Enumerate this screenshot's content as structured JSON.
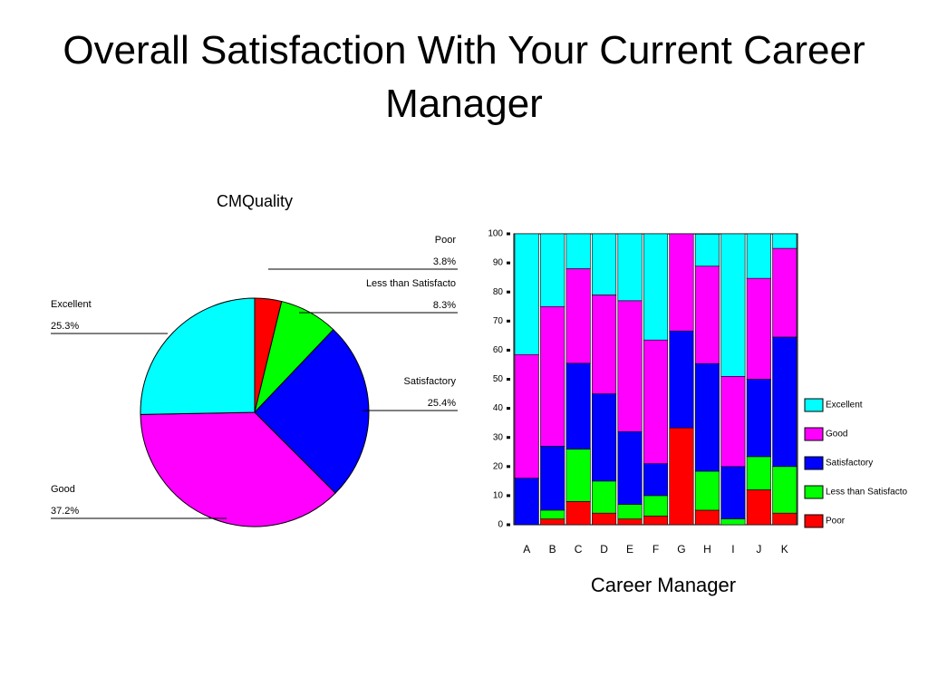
{
  "title": "Overall Satisfaction With Your Current Career Manager",
  "chart_data": [
    {
      "type": "pie",
      "title": "CMQuality",
      "categories": [
        "Poor",
        "Less than Satisfacto",
        "Satisfactory",
        "Good",
        "Excellent"
      ],
      "values": [
        3.8,
        8.3,
        25.4,
        37.2,
        25.3
      ],
      "value_labels": [
        "3.8%",
        "8.3%",
        "25.4%",
        "37.2%",
        "25.3%"
      ],
      "colors": [
        "#ff0000",
        "#00ff00",
        "#0000ff",
        "#ff00ff",
        "#00ffff"
      ]
    },
    {
      "type": "stacked_bar",
      "x_label": "Career Manager",
      "categories": [
        "A",
        "B",
        "C",
        "D",
        "E",
        "F",
        "G",
        "H",
        "I",
        "J",
        "K"
      ],
      "series": [
        {
          "name": "Poor",
          "color": "#ff0000",
          "values": [
            0,
            2,
            8,
            4,
            2,
            3,
            33.3,
            5,
            0,
            12,
            4
          ]
        },
        {
          "name": "Less than Satisfacto",
          "color": "#00ff00",
          "values": [
            0,
            3,
            18,
            11,
            5,
            7,
            0,
            13.4,
            2,
            11.4,
            16
          ]
        },
        {
          "name": "Satisfactory",
          "color": "#0000ff",
          "values": [
            16,
            22,
            29.5,
            30,
            25,
            11,
            33.3,
            37,
            18,
            26.6,
            44.5
          ]
        },
        {
          "name": "Good",
          "color": "#ff00ff",
          "values": [
            42.5,
            48,
            32.5,
            34,
            45,
            42.5,
            33.4,
            33.5,
            31,
            34.7,
            30.5
          ]
        },
        {
          "name": "Excellent",
          "color": "#00ffff",
          "values": [
            41.5,
            25,
            12,
            21,
            23,
            36.5,
            0,
            11,
            49,
            15.3,
            5
          ]
        }
      ],
      "ylim": [
        0,
        100
      ],
      "yticks": [
        0,
        10,
        20,
        30,
        40,
        50,
        60,
        70,
        80,
        90,
        100
      ],
      "grid": false,
      "legend": "right"
    }
  ]
}
